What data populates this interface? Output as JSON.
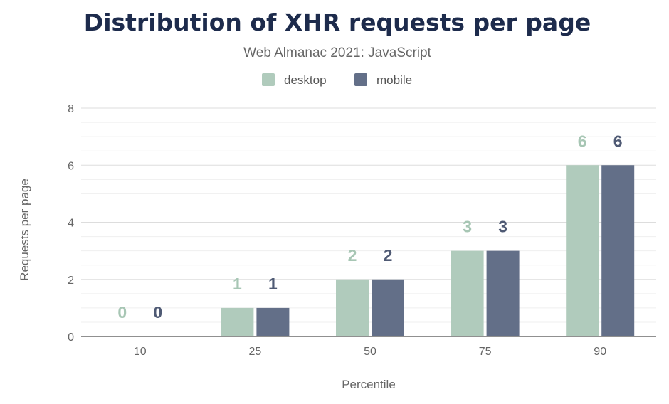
{
  "chart_data": {
    "type": "bar",
    "title": "Distribution of XHR requests per page",
    "subtitle": "Web Almanac 2021: JavaScript",
    "xlabel": "Percentile",
    "ylabel": "Requests per page",
    "categories": [
      "10",
      "25",
      "50",
      "75",
      "90"
    ],
    "series": [
      {
        "name": "desktop",
        "color": "#b0cbbc",
        "label_color": "#a7c6b4",
        "values": [
          0,
          1,
          2,
          3,
          6
        ]
      },
      {
        "name": "mobile",
        "color": "#636f88",
        "label_color": "#4f5a74",
        "values": [
          0,
          1,
          2,
          3,
          6
        ]
      }
    ],
    "ylim": [
      0,
      8
    ],
    "y_ticks": [
      0,
      2,
      4,
      6,
      8
    ],
    "grid": true,
    "legend_position": "top-center",
    "data_labels": true
  }
}
